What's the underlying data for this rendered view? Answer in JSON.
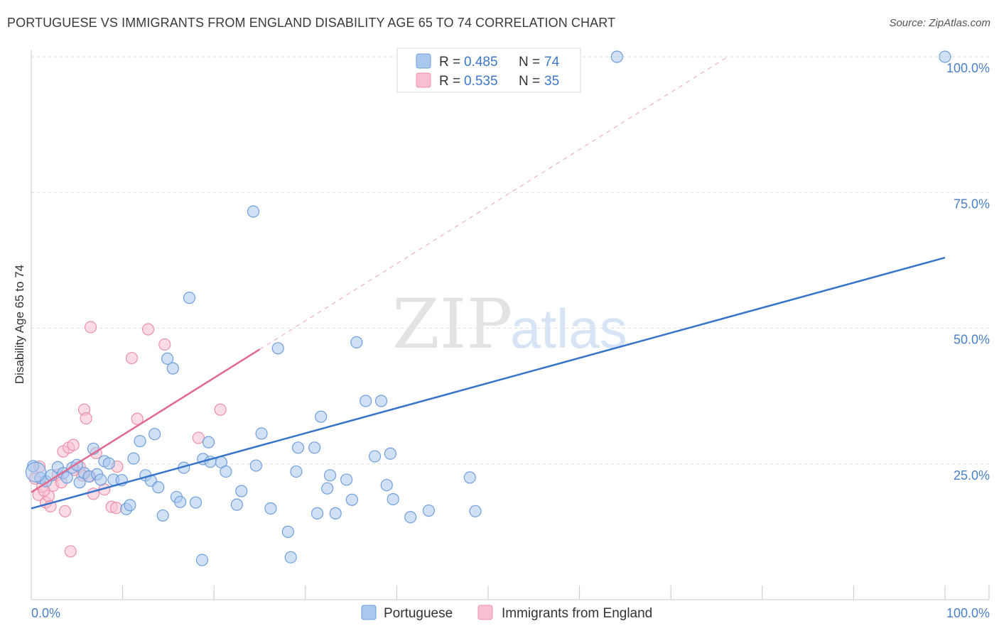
{
  "title": "PORTUGUESE VS IMMIGRANTS FROM ENGLAND DISABILITY AGE 65 TO 74 CORRELATION CHART",
  "source": "Source: ZipAtlas.com",
  "watermark": {
    "zip": "ZIP",
    "atlas": "atlas"
  },
  "legend_top": {
    "rows": [
      {
        "r_label": "R =",
        "r_value": "0.485",
        "n_label": "N =",
        "n_value": "74"
      },
      {
        "r_label": "R =",
        "r_value": "0.535",
        "n_label": "N =",
        "n_value": "35"
      }
    ]
  },
  "legend_bottom": [
    "Portuguese",
    "Immigrants from England"
  ],
  "colors": {
    "portuguese_fill": "#a9c8ee",
    "portuguese_stroke": "#6f9fdc",
    "portuguese_line": "#3574c8",
    "england_fill": "#f7bfd0",
    "england_stroke": "#ec8fac",
    "england_line": "#e0698f",
    "tick_text": "#4a7fc9",
    "grid": "#dddddd"
  },
  "chart_data": {
    "type": "scatter",
    "title": "PORTUGUESE VS IMMIGRANTS FROM ENGLAND DISABILITY AGE 65 TO 74 CORRELATION CHART",
    "xlabel": "",
    "ylabel": "Disability Age 65 to 74",
    "xlim": [
      0,
      100
    ],
    "ylim": [
      0,
      100
    ],
    "x_tick_labels": [
      "0.0%",
      "100.0%"
    ],
    "y_tick_labels": [
      "25.0%",
      "50.0%",
      "75.0%",
      "100.0%"
    ],
    "y_ticks": [
      25,
      50,
      75,
      100
    ],
    "grid": true,
    "legend_position": "top-center",
    "series": [
      {
        "name": "Portuguese",
        "R": 0.485,
        "N": 74,
        "trend": {
          "x": [
            0,
            100
          ],
          "y": [
            16.8,
            63.0
          ]
        },
        "points": [
          [
            0.2,
            24.6
          ],
          [
            1.0,
            22.4
          ],
          [
            1.6,
            21.8
          ],
          [
            2.2,
            22.9
          ],
          [
            2.9,
            24.4
          ],
          [
            3.5,
            23.3
          ],
          [
            3.9,
            22.5
          ],
          [
            4.5,
            24.3
          ],
          [
            5.0,
            24.8
          ],
          [
            5.3,
            21.6
          ],
          [
            5.8,
            23.3
          ],
          [
            6.3,
            22.7
          ],
          [
            6.8,
            27.8
          ],
          [
            7.2,
            23.1
          ],
          [
            7.6,
            22.1
          ],
          [
            8.0,
            25.5
          ],
          [
            8.5,
            25.1
          ],
          [
            9.0,
            22.1
          ],
          [
            9.9,
            22.0
          ],
          [
            10.4,
            16.7
          ],
          [
            10.8,
            17.4
          ],
          [
            11.2,
            26.0
          ],
          [
            11.9,
            29.2
          ],
          [
            12.5,
            22.9
          ],
          [
            13.1,
            21.9
          ],
          [
            13.5,
            30.5
          ],
          [
            13.9,
            20.7
          ],
          [
            14.4,
            15.5
          ],
          [
            14.9,
            44.4
          ],
          [
            15.5,
            42.6
          ],
          [
            15.9,
            18.9
          ],
          [
            16.3,
            18.0
          ],
          [
            16.7,
            24.3
          ],
          [
            17.3,
            55.6
          ],
          [
            18.0,
            17.9
          ],
          [
            18.7,
            7.3
          ],
          [
            18.8,
            25.9
          ],
          [
            19.4,
            29.0
          ],
          [
            19.6,
            25.4
          ],
          [
            20.8,
            25.3
          ],
          [
            21.3,
            23.6
          ],
          [
            22.5,
            17.5
          ],
          [
            23.0,
            20.0
          ],
          [
            24.3,
            71.5
          ],
          [
            24.6,
            24.7
          ],
          [
            25.2,
            30.6
          ],
          [
            26.2,
            16.8
          ],
          [
            27.0,
            46.3
          ],
          [
            28.1,
            12.5
          ],
          [
            28.4,
            7.8
          ],
          [
            29.0,
            23.6
          ],
          [
            29.2,
            28.0
          ],
          [
            31.0,
            28.0
          ],
          [
            31.3,
            15.9
          ],
          [
            31.7,
            33.7
          ],
          [
            32.4,
            20.5
          ],
          [
            32.7,
            22.9
          ],
          [
            33.3,
            15.9
          ],
          [
            34.5,
            22.1
          ],
          [
            35.1,
            18.4
          ],
          [
            35.6,
            47.4
          ],
          [
            36.6,
            36.6
          ],
          [
            37.6,
            26.4
          ],
          [
            38.3,
            36.6
          ],
          [
            38.9,
            21.1
          ],
          [
            39.3,
            26.9
          ],
          [
            39.6,
            18.5
          ],
          [
            41.5,
            15.2
          ],
          [
            43.5,
            16.4
          ],
          [
            48.0,
            22.5
          ],
          [
            48.6,
            16.3
          ],
          [
            64.1,
            100.0
          ],
          [
            100.0,
            100.0
          ],
          [
            0.5,
            23.5
          ]
        ]
      },
      {
        "name": "Immigrants from England",
        "R": 0.535,
        "N": 35,
        "trend": {
          "x": [
            0,
            100
          ],
          "y": [
            19.8,
            125.0
          ]
        },
        "trend_solid_until_x": 25,
        "points": [
          [
            0.4,
            22.3
          ],
          [
            0.8,
            19.3
          ],
          [
            1.2,
            20.8
          ],
          [
            1.6,
            17.9
          ],
          [
            1.9,
            19.1
          ],
          [
            2.1,
            17.2
          ],
          [
            2.4,
            21.0
          ],
          [
            2.9,
            23.0
          ],
          [
            3.3,
            21.6
          ],
          [
            3.5,
            27.3
          ],
          [
            3.7,
            16.3
          ],
          [
            4.1,
            28.0
          ],
          [
            4.3,
            8.9
          ],
          [
            4.6,
            28.5
          ],
          [
            4.7,
            23.9
          ],
          [
            5.3,
            24.5
          ],
          [
            5.6,
            22.9
          ],
          [
            5.8,
            35.0
          ],
          [
            6.0,
            33.4
          ],
          [
            6.4,
            22.7
          ],
          [
            6.5,
            50.2
          ],
          [
            6.8,
            19.5
          ],
          [
            7.1,
            27.0
          ],
          [
            8.0,
            20.3
          ],
          [
            8.8,
            17.1
          ],
          [
            9.3,
            16.9
          ],
          [
            9.4,
            24.5
          ],
          [
            11.0,
            44.5
          ],
          [
            11.6,
            33.3
          ],
          [
            12.8,
            49.8
          ],
          [
            14.6,
            47.0
          ],
          [
            18.3,
            29.8
          ],
          [
            20.7,
            35.0
          ],
          [
            0.9,
            24.5
          ],
          [
            1.4,
            20.1
          ]
        ]
      }
    ]
  }
}
